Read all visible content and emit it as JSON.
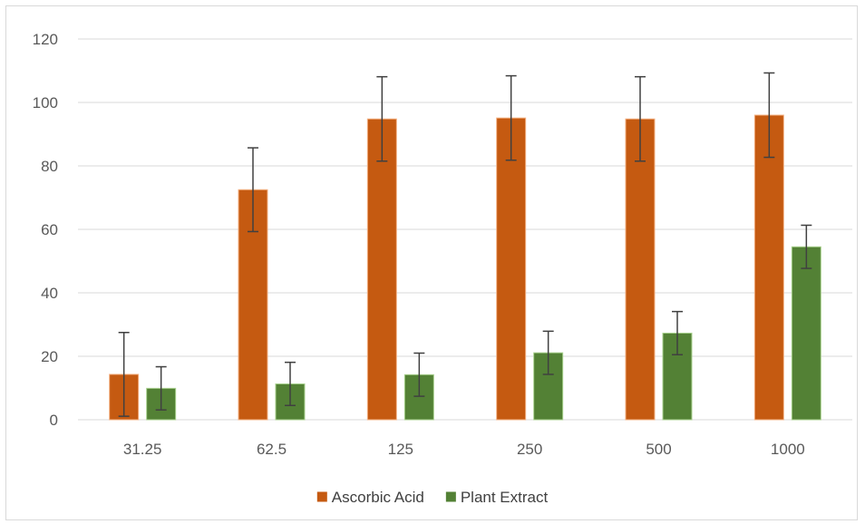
{
  "chart_data": {
    "type": "bar",
    "title": "",
    "xlabel": "",
    "ylabel": "",
    "categories": [
      "31.25",
      "62.5",
      "125",
      "250",
      "500",
      "1000"
    ],
    "ylim": [
      0,
      120
    ],
    "yticks": [
      0,
      20,
      40,
      60,
      80,
      100,
      120
    ],
    "grid": true,
    "legend_position": "bottom",
    "series": [
      {
        "name": "Ascorbic Acid",
        "color": "#c55a11",
        "values": [
          14.3,
          72.5,
          94.8,
          95.1,
          94.8,
          96.0
        ],
        "errors": [
          13.2,
          13.2,
          13.3,
          13.3,
          13.3,
          13.3
        ]
      },
      {
        "name": "Plant Extract",
        "color": "#538135",
        "values": [
          9.9,
          11.3,
          14.2,
          21.1,
          27.3,
          54.5
        ],
        "errors": [
          6.8,
          6.8,
          6.8,
          6.8,
          6.8,
          6.8
        ]
      }
    ]
  }
}
